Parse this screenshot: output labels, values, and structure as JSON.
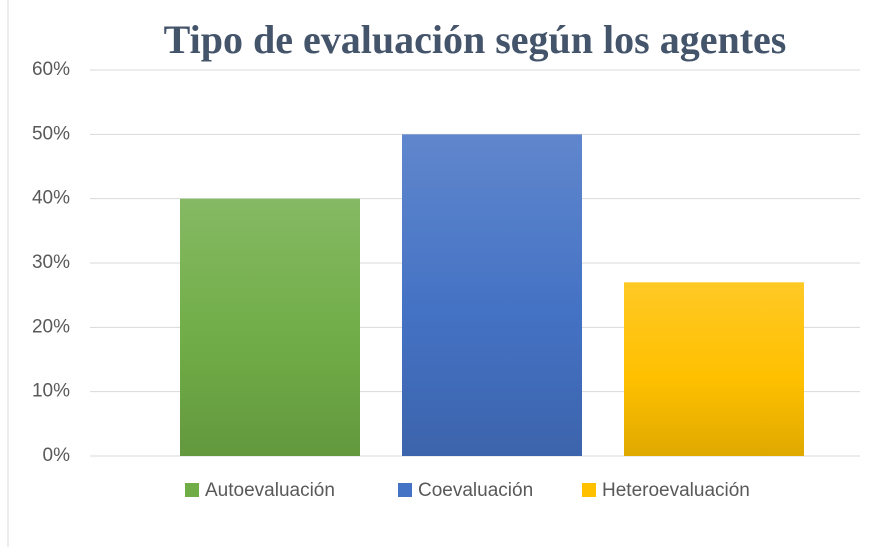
{
  "chart_data": {
    "type": "bar",
    "title": "Tipo de evaluación según los agentes",
    "series": [
      {
        "name": "Autoevaluación",
        "color": "#70ad47",
        "values": [
          40
        ]
      },
      {
        "name": "Coevaluación",
        "color": "#4472c4",
        "values": [
          50
        ]
      },
      {
        "name": "Heteroevaluación",
        "color": "#ffc000",
        "values": [
          27
        ]
      }
    ],
    "ylim": [
      0,
      60
    ],
    "yticks": [
      {
        "value": 0,
        "label": "0%"
      },
      {
        "value": 10,
        "label": "10%"
      },
      {
        "value": 20,
        "label": "20%"
      },
      {
        "value": 30,
        "label": "30%"
      },
      {
        "value": 40,
        "label": "40%"
      },
      {
        "value": 50,
        "label": "50%"
      },
      {
        "value": 60,
        "label": "60%"
      }
    ],
    "grid": true,
    "legend": "bottom"
  }
}
